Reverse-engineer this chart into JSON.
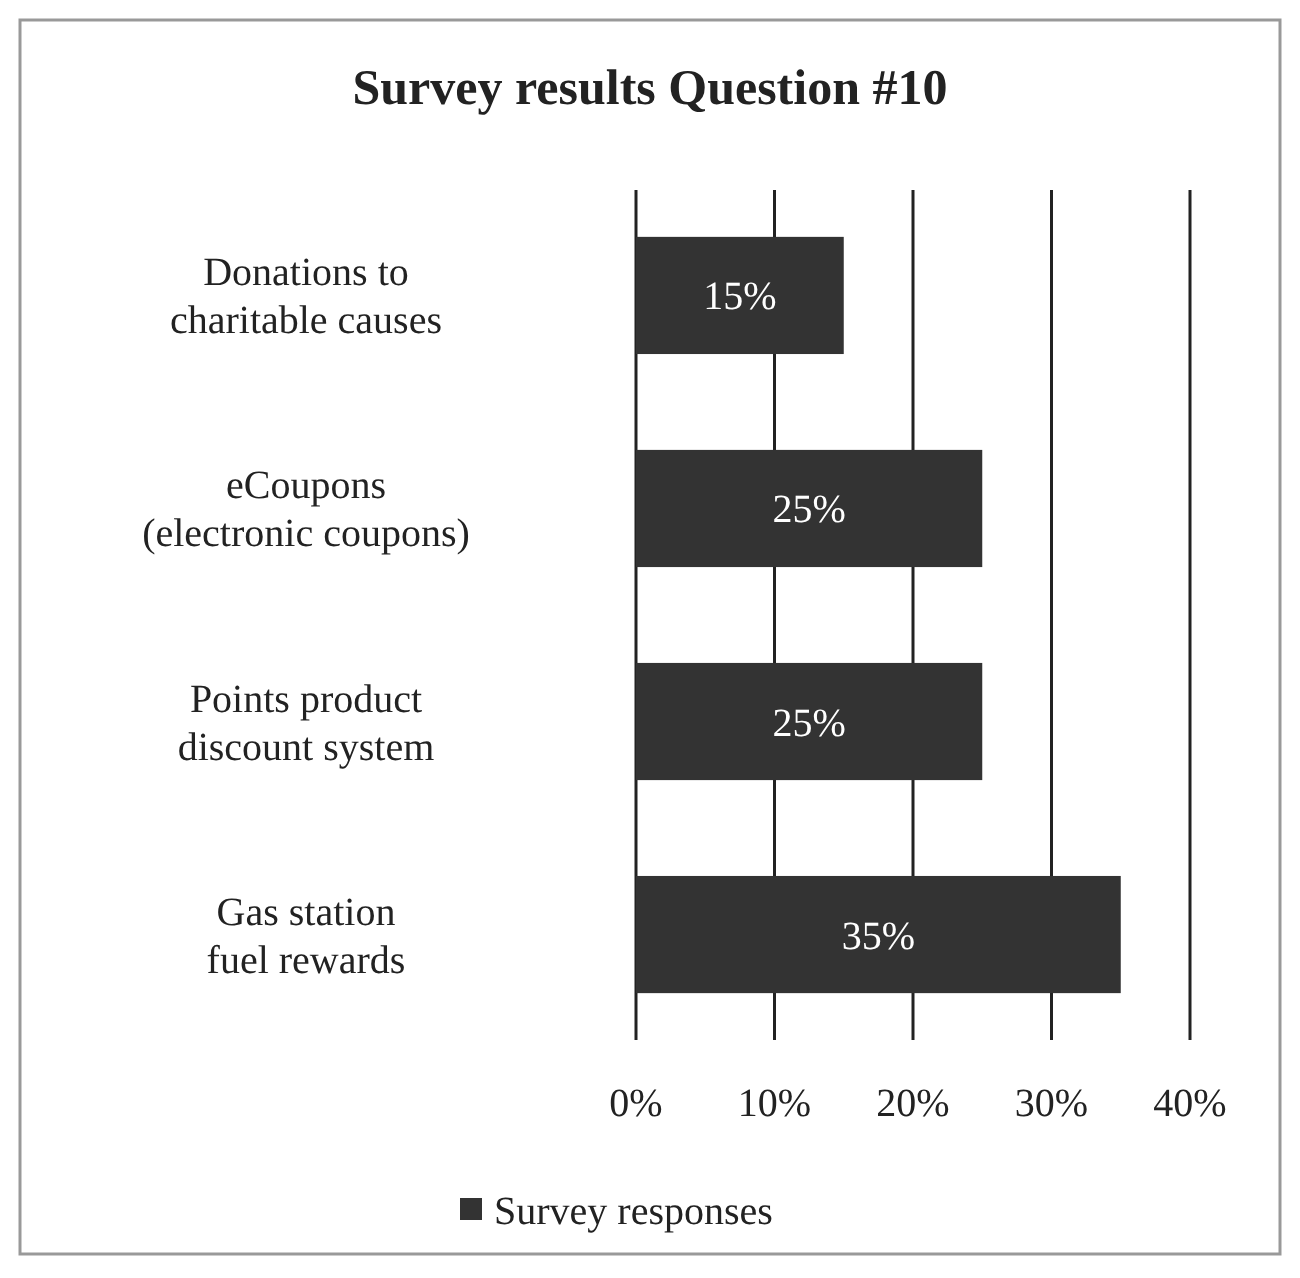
{
  "chart_data": {
    "type": "bar",
    "orientation": "horizontal",
    "title": "Survey results Question #10",
    "categories": [
      "Donations to charitable causes",
      "eCoupons (electronic coupons)",
      "Points product discount system",
      "Gas station fuel rewards"
    ],
    "series": [
      {
        "name": "Survey responses",
        "color": "#333333",
        "values": [
          15,
          25,
          25,
          35
        ],
        "value_labels": [
          "15%",
          "25%",
          "25%",
          "35%"
        ]
      }
    ],
    "xlim": [
      0,
      40
    ],
    "xticks": [
      {
        "value": 0,
        "label": "0%"
      },
      {
        "value": 10,
        "label": "10%"
      },
      {
        "value": 20,
        "label": "20%"
      },
      {
        "value": 30,
        "label": "30%"
      },
      {
        "value": 40,
        "label": "40%"
      }
    ],
    "grid": "x",
    "legend": "bottom"
  }
}
